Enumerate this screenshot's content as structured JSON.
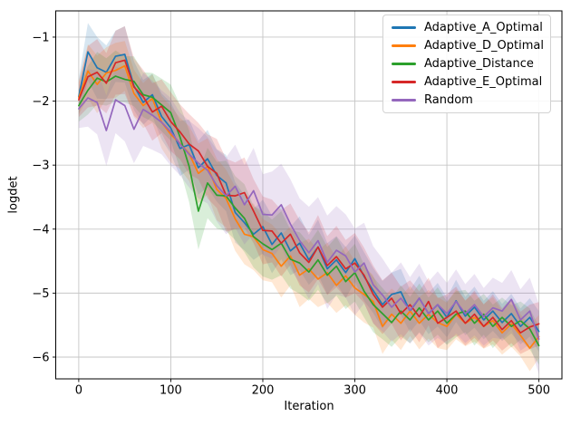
{
  "figure": {
    "xlabel": "Iteration",
    "ylabel": "logdet"
  },
  "chart_data": {
    "type": "line",
    "title": "",
    "xlabel": "Iteration",
    "ylabel": "logdet",
    "xlim": [
      -25,
      525
    ],
    "ylim": [
      -6.34,
      -0.59
    ],
    "xticks": [
      0,
      100,
      200,
      300,
      400,
      500
    ],
    "yticks": [
      -1,
      -2,
      -3,
      -4,
      -5,
      -6
    ],
    "grid": true,
    "grid_color": "#c6c6c6",
    "spine_color": "#000000",
    "band_opacity": 0.18,
    "legend_position": "upper right",
    "x": [
      0,
      10,
      20,
      30,
      40,
      50,
      60,
      70,
      80,
      90,
      100,
      110,
      120,
      130,
      140,
      150,
      160,
      170,
      180,
      190,
      200,
      210,
      220,
      230,
      240,
      250,
      260,
      270,
      280,
      290,
      300,
      310,
      320,
      330,
      340,
      350,
      360,
      370,
      380,
      390,
      400,
      410,
      420,
      430,
      440,
      450,
      460,
      470,
      480,
      490,
      500
    ],
    "series": [
      {
        "name": "Adaptive_A_Optimal",
        "color": "#1f77b4",
        "values": [
          -1.93,
          -1.23,
          -1.48,
          -1.55,
          -1.3,
          -1.27,
          -1.76,
          -2.02,
          -1.9,
          -2.24,
          -2.42,
          -2.74,
          -2.68,
          -3.04,
          -2.9,
          -3.16,
          -3.28,
          -3.74,
          -3.9,
          -4.08,
          -3.96,
          -4.24,
          -4.06,
          -4.34,
          -4.22,
          -4.48,
          -4.28,
          -4.62,
          -4.48,
          -4.68,
          -4.46,
          -4.74,
          -4.96,
          -5.18,
          -5.02,
          -4.98,
          -5.28,
          -5.08,
          -5.32,
          -5.18,
          -5.38,
          -5.12,
          -5.36,
          -5.22,
          -5.42,
          -5.28,
          -5.46,
          -5.32,
          -5.52,
          -5.38,
          -5.6
        ],
        "band_halfwidth": [
          0.28,
          0.45,
          0.48,
          0.42,
          0.4,
          0.44,
          0.38,
          0.35,
          0.33,
          0.36,
          0.4,
          0.43,
          0.39,
          0.42,
          0.45,
          0.41,
          0.44,
          0.47,
          0.43,
          0.4,
          0.42,
          0.45,
          0.41,
          0.38,
          0.42,
          0.39,
          0.43,
          0.4,
          0.37,
          0.4,
          0.36,
          0.38,
          0.35,
          0.37,
          0.34,
          0.36,
          0.33,
          0.35,
          0.32,
          0.34,
          0.31,
          0.33,
          0.3,
          0.32,
          0.3,
          0.31,
          0.29,
          0.31,
          0.28,
          0.3,
          0.32
        ]
      },
      {
        "name": "Adaptive_D_Optimal",
        "color": "#ff7f0e",
        "values": [
          -1.95,
          -1.53,
          -1.74,
          -1.56,
          -1.52,
          -1.45,
          -1.88,
          -2.07,
          -1.96,
          -2.33,
          -2.52,
          -2.66,
          -2.82,
          -3.13,
          -3.02,
          -3.38,
          -3.52,
          -3.84,
          -4.08,
          -4.12,
          -4.32,
          -4.38,
          -4.58,
          -4.42,
          -4.72,
          -4.62,
          -4.78,
          -4.68,
          -4.88,
          -4.73,
          -4.92,
          -5.02,
          -5.13,
          -5.52,
          -5.33,
          -5.47,
          -5.28,
          -5.47,
          -5.33,
          -5.46,
          -5.52,
          -5.33,
          -5.47,
          -5.38,
          -5.52,
          -5.43,
          -5.62,
          -5.48,
          -5.66,
          -5.86,
          -5.68
        ],
        "band_halfwidth": [
          0.26,
          0.42,
          0.45,
          0.4,
          0.43,
          0.39,
          0.37,
          0.35,
          0.38,
          0.41,
          0.44,
          0.4,
          0.43,
          0.47,
          0.44,
          0.48,
          0.45,
          0.5,
          0.47,
          0.52,
          0.48,
          0.45,
          0.49,
          0.46,
          0.5,
          0.47,
          0.44,
          0.47,
          0.43,
          0.46,
          0.42,
          0.44,
          0.41,
          0.43,
          0.4,
          0.42,
          0.39,
          0.41,
          0.38,
          0.4,
          0.37,
          0.39,
          0.36,
          0.38,
          0.35,
          0.37,
          0.34,
          0.36,
          0.33,
          0.36,
          0.34
        ]
      },
      {
        "name": "Adaptive_Distance",
        "color": "#2ca02c",
        "values": [
          -2.07,
          -1.83,
          -1.64,
          -1.7,
          -1.61,
          -1.66,
          -1.69,
          -1.9,
          -1.94,
          -2.06,
          -2.18,
          -2.56,
          -3.02,
          -3.72,
          -3.28,
          -3.47,
          -3.48,
          -3.67,
          -3.83,
          -4.12,
          -4.23,
          -4.32,
          -4.22,
          -4.47,
          -4.53,
          -4.67,
          -4.48,
          -4.72,
          -4.58,
          -4.82,
          -4.68,
          -4.97,
          -5.18,
          -5.32,
          -5.46,
          -5.28,
          -5.42,
          -5.23,
          -5.42,
          -5.28,
          -5.47,
          -5.33,
          -5.28,
          -5.47,
          -5.33,
          -5.52,
          -5.38,
          -5.52,
          -5.43,
          -5.56,
          -5.82
        ],
        "band_halfwidth": [
          0.25,
          0.38,
          0.41,
          0.37,
          0.4,
          0.36,
          0.39,
          0.35,
          0.38,
          0.41,
          0.44,
          0.5,
          0.56,
          0.6,
          0.55,
          0.52,
          0.55,
          0.5,
          0.53,
          0.48,
          0.51,
          0.47,
          0.5,
          0.46,
          0.48,
          0.45,
          0.47,
          0.44,
          0.46,
          0.43,
          0.45,
          0.41,
          0.43,
          0.4,
          0.38,
          0.4,
          0.36,
          0.38,
          0.35,
          0.37,
          0.34,
          0.36,
          0.33,
          0.35,
          0.32,
          0.34,
          0.31,
          0.33,
          0.3,
          0.32,
          0.3
        ]
      },
      {
        "name": "Adaptive_E_Optimal",
        "color": "#d62728",
        "values": [
          -1.98,
          -1.62,
          -1.55,
          -1.72,
          -1.4,
          -1.36,
          -1.78,
          -1.93,
          -2.17,
          -2.08,
          -2.32,
          -2.48,
          -2.67,
          -2.78,
          -3.02,
          -3.13,
          -3.47,
          -3.48,
          -3.43,
          -3.72,
          -4.02,
          -4.03,
          -4.22,
          -4.08,
          -4.37,
          -4.52,
          -4.28,
          -4.57,
          -4.43,
          -4.62,
          -4.53,
          -4.72,
          -5.02,
          -5.22,
          -5.08,
          -5.32,
          -5.18,
          -5.37,
          -5.13,
          -5.47,
          -5.38,
          -5.28,
          -5.47,
          -5.33,
          -5.52,
          -5.38,
          -5.57,
          -5.43,
          -5.62,
          -5.53,
          -5.48
        ],
        "band_halfwidth": [
          0.27,
          0.48,
          0.52,
          0.47,
          0.5,
          0.53,
          0.45,
          0.42,
          0.45,
          0.42,
          0.46,
          0.43,
          0.47,
          0.44,
          0.5,
          0.54,
          0.57,
          0.52,
          0.55,
          0.5,
          0.53,
          0.49,
          0.52,
          0.48,
          0.51,
          0.47,
          0.5,
          0.46,
          0.48,
          0.45,
          0.47,
          0.43,
          0.45,
          0.42,
          0.4,
          0.42,
          0.38,
          0.4,
          0.37,
          0.39,
          0.36,
          0.38,
          0.35,
          0.37,
          0.34,
          0.36,
          0.33,
          0.35,
          0.33,
          0.35,
          0.34
        ]
      },
      {
        "name": "Random",
        "color": "#9467bd",
        "values": [
          -2.12,
          -1.95,
          -2.02,
          -2.46,
          -1.98,
          -2.07,
          -2.44,
          -2.13,
          -2.22,
          -2.33,
          -2.48,
          -2.67,
          -2.83,
          -2.97,
          -3.08,
          -3.32,
          -3.48,
          -3.33,
          -3.62,
          -3.4,
          -3.77,
          -3.78,
          -3.62,
          -3.92,
          -4.18,
          -4.37,
          -4.18,
          -4.52,
          -4.33,
          -4.42,
          -4.67,
          -4.53,
          -4.87,
          -5.03,
          -5.22,
          -5.08,
          -5.27,
          -5.08,
          -5.32,
          -5.18,
          -5.32,
          -5.13,
          -5.32,
          -5.18,
          -5.37,
          -5.23,
          -5.28,
          -5.1,
          -5.42,
          -5.28,
          -5.72
        ],
        "band_halfwidth": [
          0.3,
          0.45,
          0.5,
          0.55,
          0.52,
          0.56,
          0.53,
          0.57,
          0.54,
          0.5,
          0.53,
          0.49,
          0.52,
          0.55,
          0.52,
          0.56,
          0.6,
          0.65,
          0.62,
          0.67,
          0.63,
          0.68,
          0.64,
          0.7,
          0.66,
          0.72,
          0.68,
          0.73,
          0.69,
          0.65,
          0.68,
          0.63,
          0.6,
          0.57,
          0.54,
          0.56,
          0.52,
          0.54,
          0.5,
          0.52,
          0.48,
          0.5,
          0.46,
          0.48,
          0.45,
          0.47,
          0.44,
          0.46,
          0.48,
          0.52,
          0.55
        ]
      }
    ]
  }
}
